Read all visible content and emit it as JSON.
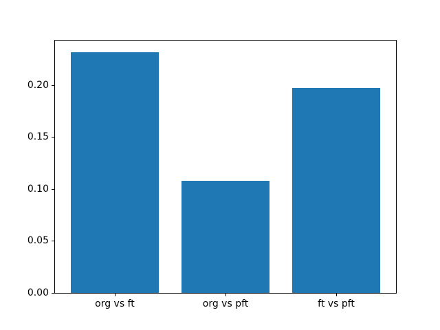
{
  "figure": {
    "background_color": "#ffffff",
    "spine_color": "#000000",
    "tick_color": "#000000",
    "text_color": "#000000"
  },
  "chart_data": {
    "type": "bar",
    "title": "",
    "xlabel": "",
    "ylabel": "",
    "categories": [
      "org vs ft",
      "org vs pft",
      "ft vs pft"
    ],
    "values": [
      0.232,
      0.108,
      0.197
    ],
    "bar_color": "#1f77b4",
    "ylim": [
      0,
      0.243
    ],
    "yticks": [
      0,
      0.05,
      0.1,
      0.15,
      0.2
    ],
    "ytick_labels": [
      "0.00",
      "0.05",
      "0.10",
      "0.15",
      "0.20"
    ],
    "grid": false,
    "legend_position": "none",
    "bar_width_ratio": 0.8
  }
}
